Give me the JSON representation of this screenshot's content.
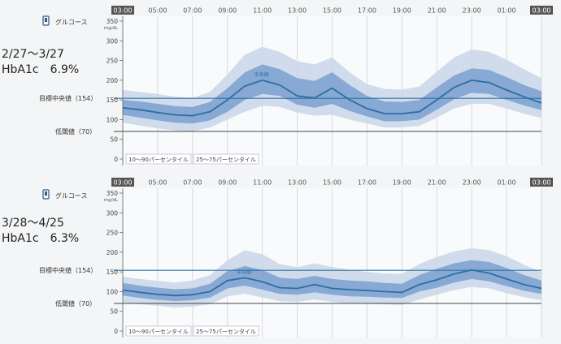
{
  "title": "グルコース",
  "unit": "mg/dL",
  "x_ticks": [
    "03:00",
    "05:00",
    "07:00",
    "09:00",
    "11:00",
    "13:00",
    "15:00",
    "17:00",
    "19:00",
    "21:00",
    "23:00",
    "01:00",
    "03:00"
  ],
  "y_ticks": [
    "350",
    "300",
    "250",
    "200",
    "150",
    "100",
    "50",
    "0"
  ],
  "target_label": "目標中央値（154）",
  "low_label": "低閾値（70）",
  "median_label": "中央値",
  "legend": {
    "p10_90": "10〜90パーセンタイル",
    "p25_75": "25〜75パーセンタイル"
  },
  "colors": {
    "outer_band": "#c9d6e8",
    "inner_band": "#7ea3d2",
    "median": "#2d6ea3",
    "target_line": "#2f73a5",
    "low_line": "#444444"
  },
  "panels": [
    {
      "period": "2/27〜3/27",
      "hba1c": "HbA1c　6.9%"
    },
    {
      "period": "3/28〜4/25",
      "hba1c": "HbA1c　6.3%"
    }
  ],
  "chart_data": [
    {
      "type": "area",
      "title": "グルコース",
      "ylabel": "mg/dL",
      "ylim": [
        0,
        350
      ],
      "target": 154,
      "low_threshold": 70,
      "x": [
        3,
        4,
        5,
        6,
        7,
        8,
        9,
        10,
        11,
        12,
        13,
        14,
        15,
        16,
        17,
        18,
        19,
        20,
        21,
        22,
        23,
        24,
        25,
        26,
        27
      ],
      "series": [
        {
          "name": "中央値",
          "values": [
            130,
            125,
            118,
            112,
            110,
            120,
            150,
            185,
            200,
            188,
            160,
            155,
            180,
            150,
            128,
            115,
            115,
            120,
            150,
            182,
            200,
            194,
            175,
            158,
            142
          ]
        },
        {
          "name": "25〜75パーセンタイル",
          "low": [
            112,
            105,
            98,
            92,
            90,
            98,
            120,
            150,
            165,
            160,
            138,
            130,
            140,
            122,
            108,
            96,
            96,
            100,
            125,
            152,
            168,
            165,
            150,
            136,
            124
          ],
          "high": [
            150,
            146,
            140,
            134,
            132,
            145,
            180,
            220,
            240,
            228,
            205,
            198,
            220,
            188,
            160,
            146,
            145,
            150,
            182,
            212,
            230,
            226,
            208,
            188,
            172
          ]
        },
        {
          "name": "10〜90パーセンタイル",
          "low": [
            92,
            85,
            78,
            72,
            70,
            80,
            100,
            120,
            135,
            132,
            118,
            110,
            112,
            100,
            90,
            80,
            80,
            84,
            105,
            128,
            140,
            140,
            128,
            115,
            104
          ],
          "high": [
            175,
            170,
            165,
            158,
            155,
            170,
            215,
            265,
            285,
            272,
            248,
            240,
            258,
            220,
            190,
            178,
            176,
            184,
            222,
            258,
            278,
            272,
            252,
            228,
            205
          ]
        }
      ]
    },
    {
      "type": "area",
      "title": "グルコース",
      "ylabel": "mg/dL",
      "ylim": [
        0,
        350
      ],
      "target": 154,
      "low_threshold": 70,
      "x": [
        3,
        4,
        5,
        6,
        7,
        8,
        9,
        10,
        11,
        12,
        13,
        14,
        15,
        16,
        17,
        18,
        19,
        20,
        21,
        22,
        23,
        24,
        25,
        26,
        27
      ],
      "series": [
        {
          "name": "中央値",
          "values": [
            104,
            98,
            93,
            90,
            92,
            100,
            128,
            135,
            125,
            110,
            108,
            118,
            108,
            105,
            103,
            100,
            98,
            118,
            130,
            145,
            155,
            147,
            132,
            118,
            108
          ]
        },
        {
          "name": "25〜75パーセンタイル",
          "low": [
            90,
            84,
            79,
            76,
            78,
            85,
            108,
            115,
            105,
            94,
            92,
            98,
            92,
            88,
            87,
            85,
            84,
            100,
            110,
            123,
            132,
            126,
            114,
            102,
            94
          ],
          "high": [
            122,
            115,
            110,
            106,
            108,
            120,
            152,
            165,
            155,
            135,
            132,
            140,
            132,
            128,
            126,
            122,
            120,
            142,
            158,
            172,
            180,
            175,
            160,
            142,
            128
          ]
        },
        {
          "name": "10〜90パーセンタイル",
          "low": [
            72,
            68,
            64,
            60,
            62,
            68,
            88,
            95,
            85,
            76,
            74,
            80,
            74,
            70,
            69,
            68,
            66,
            80,
            92,
            104,
            112,
            108,
            96,
            86,
            78
          ],
          "high": [
            138,
            132,
            127,
            123,
            128,
            142,
            180,
            205,
            195,
            170,
            162,
            172,
            162,
            155,
            150,
            146,
            145,
            170,
            188,
            202,
            210,
            205,
            190,
            168,
            150
          ]
        }
      ]
    }
  ]
}
